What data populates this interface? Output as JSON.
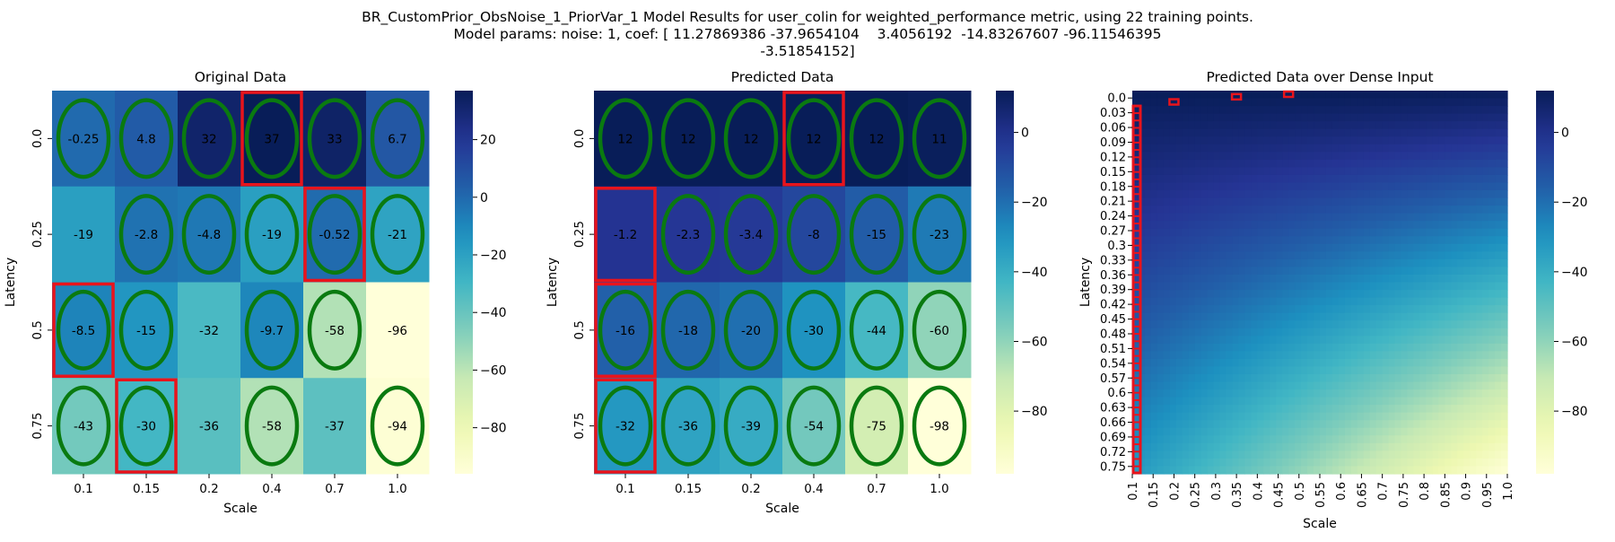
{
  "figure": {
    "title_lines": [
      "BR_CustomPrior_ObsNoise_1_PriorVar_1 Model Results for user_colin for weighted_performance metric, using 22 training points.",
      "Model params: noise: 1, coef: [ 11.27869386 -37.9654104    3.4056192  -14.83267607 -96.11546395",
      "-3.51854152]"
    ]
  },
  "chart_data": [
    {
      "type": "heatmap",
      "title": "Original Data",
      "xlabel": "Scale",
      "ylabel": "Latency",
      "x_ticks": [
        "0.1",
        "0.15",
        "0.2",
        "0.4",
        "0.7",
        "1.0"
      ],
      "y_ticks": [
        "0.0",
        "0.25",
        "0.5",
        "0.75"
      ],
      "values": [
        [
          -0.25,
          4.8,
          32,
          37,
          33,
          6.7
        ],
        [
          -19,
          -2.8,
          -4.8,
          -19,
          -0.52,
          -21
        ],
        [
          -8.5,
          -15,
          -32,
          -9.7,
          -58,
          -96
        ],
        [
          -43,
          -30,
          -36,
          -58,
          -37,
          -94
        ]
      ],
      "cell_labels": [
        [
          "-0.25",
          "4.8",
          "32",
          "37",
          "33",
          "6.7"
        ],
        [
          "-19",
          "-2.8",
          "-4.8",
          "-19",
          "-0.52",
          "-21"
        ],
        [
          "-8.5",
          "-15",
          "-32",
          "-9.7",
          "-58",
          "-96"
        ],
        [
          "-43",
          "-30",
          "-36",
          "-58",
          "-37",
          "-94"
        ]
      ],
      "colormap": "YlGnBu",
      "vmin": -96,
      "vmax": 37,
      "colorbar_ticks": [
        20,
        0,
        -20,
        -40,
        -60,
        -80
      ],
      "highlight_boxes": [
        [
          0,
          3
        ],
        [
          1,
          4
        ],
        [
          2,
          0
        ],
        [
          3,
          1
        ]
      ],
      "ellipses": [
        [
          0,
          0
        ],
        [
          0,
          1
        ],
        [
          0,
          2
        ],
        [
          0,
          3
        ],
        [
          0,
          4
        ],
        [
          0,
          5
        ],
        [
          1,
          1
        ],
        [
          1,
          2
        ],
        [
          1,
          3
        ],
        [
          1,
          4
        ],
        [
          1,
          5
        ],
        [
          2,
          0
        ],
        [
          2,
          1
        ],
        [
          2,
          3
        ],
        [
          2,
          4
        ],
        [
          3,
          0
        ],
        [
          3,
          1
        ],
        [
          3,
          3
        ],
        [
          3,
          5
        ]
      ],
      "box_color": "#e8141c",
      "ellipse_color": "#0a7a10"
    },
    {
      "type": "heatmap",
      "title": "Predicted Data",
      "xlabel": "Scale",
      "ylabel": "Latency",
      "x_ticks": [
        "0.1",
        "0.15",
        "0.2",
        "0.4",
        "0.7",
        "1.0"
      ],
      "y_ticks": [
        "0.0",
        "0.25",
        "0.5",
        "0.75"
      ],
      "values": [
        [
          12,
          12,
          12,
          12,
          12,
          11
        ],
        [
          -1.2,
          -2.3,
          -3.4,
          -8,
          -15,
          -23
        ],
        [
          -16,
          -18,
          -20,
          -30,
          -44,
          -60
        ],
        [
          -32,
          -36,
          -39,
          -54,
          -75,
          -98
        ]
      ],
      "cell_labels": [
        [
          "12",
          "12",
          "12",
          "12",
          "12",
          "11"
        ],
        [
          "-1.2",
          "-2.3",
          "-3.4",
          "-8",
          "-15",
          "-23"
        ],
        [
          "-16",
          "-18",
          "-20",
          "-30",
          "-44",
          "-60"
        ],
        [
          "-32",
          "-36",
          "-39",
          "-54",
          "-75",
          "-98"
        ]
      ],
      "colormap": "YlGnBu",
      "vmin": -98,
      "vmax": 12,
      "colorbar_ticks": [
        0,
        -20,
        -40,
        -60,
        -80
      ],
      "highlight_boxes": [
        [
          0,
          3
        ],
        [
          1,
          0
        ],
        [
          2,
          0
        ],
        [
          3,
          0
        ]
      ],
      "ellipses": [
        [
          0,
          0
        ],
        [
          0,
          1
        ],
        [
          0,
          2
        ],
        [
          0,
          3
        ],
        [
          0,
          4
        ],
        [
          0,
          5
        ],
        [
          1,
          1
        ],
        [
          1,
          2
        ],
        [
          1,
          3
        ],
        [
          1,
          4
        ],
        [
          1,
          5
        ],
        [
          2,
          0
        ],
        [
          2,
          1
        ],
        [
          2,
          2
        ],
        [
          2,
          3
        ],
        [
          2,
          4
        ],
        [
          2,
          5
        ],
        [
          3,
          0
        ],
        [
          3,
          1
        ],
        [
          3,
          2
        ],
        [
          3,
          3
        ],
        [
          3,
          4
        ],
        [
          3,
          5
        ]
      ],
      "box_color": "#e8141c",
      "ellipse_color": "#0a7a10"
    },
    {
      "type": "heatmap",
      "title": "Predicted Data over Dense Input",
      "xlabel": "Scale",
      "ylabel": "Latency",
      "x_ticks": [
        "0.1",
        "0.15",
        "0.2",
        "0.25",
        "0.3",
        "0.35",
        "0.4",
        "0.45",
        "0.5",
        "0.55",
        "0.6",
        "0.65",
        "0.7",
        "0.75",
        "0.8",
        "0.85",
        "0.9",
        "0.95",
        "1.0"
      ],
      "y_ticks": [
        "0.0",
        "0.03",
        "0.06",
        "0.09",
        "0.12",
        "0.15",
        "0.18",
        "0.21",
        "0.24",
        "0.27",
        "0.3",
        "0.33",
        "0.36",
        "0.39",
        "0.42",
        "0.45",
        "0.48",
        "0.51",
        "0.54",
        "0.57",
        "0.6",
        "0.63",
        "0.66",
        "0.69",
        "0.72",
        "0.75"
      ],
      "x_range": [
        0.1,
        1.0
      ],
      "y_range": [
        0.0,
        0.75
      ],
      "model_coef": [
        11.27869386,
        -37.9654104,
        3.4056192,
        -14.83267607,
        -96.11546395,
        -3.51854152
      ],
      "colormap": "YlGnBu",
      "vmin": -98,
      "vmax": 12,
      "colorbar_ticks": [
        0,
        -20,
        -40,
        -60,
        -80
      ],
      "highlight_points": {
        "x_0.1_latency_from": 0.03,
        "x_0.1_latency_to": 0.75,
        "top_markers": [
          [
            0.2,
            0.015
          ],
          [
            0.35,
            0.005
          ],
          [
            0.475,
            0.0
          ]
        ]
      },
      "box_color": "#e8141c"
    }
  ]
}
